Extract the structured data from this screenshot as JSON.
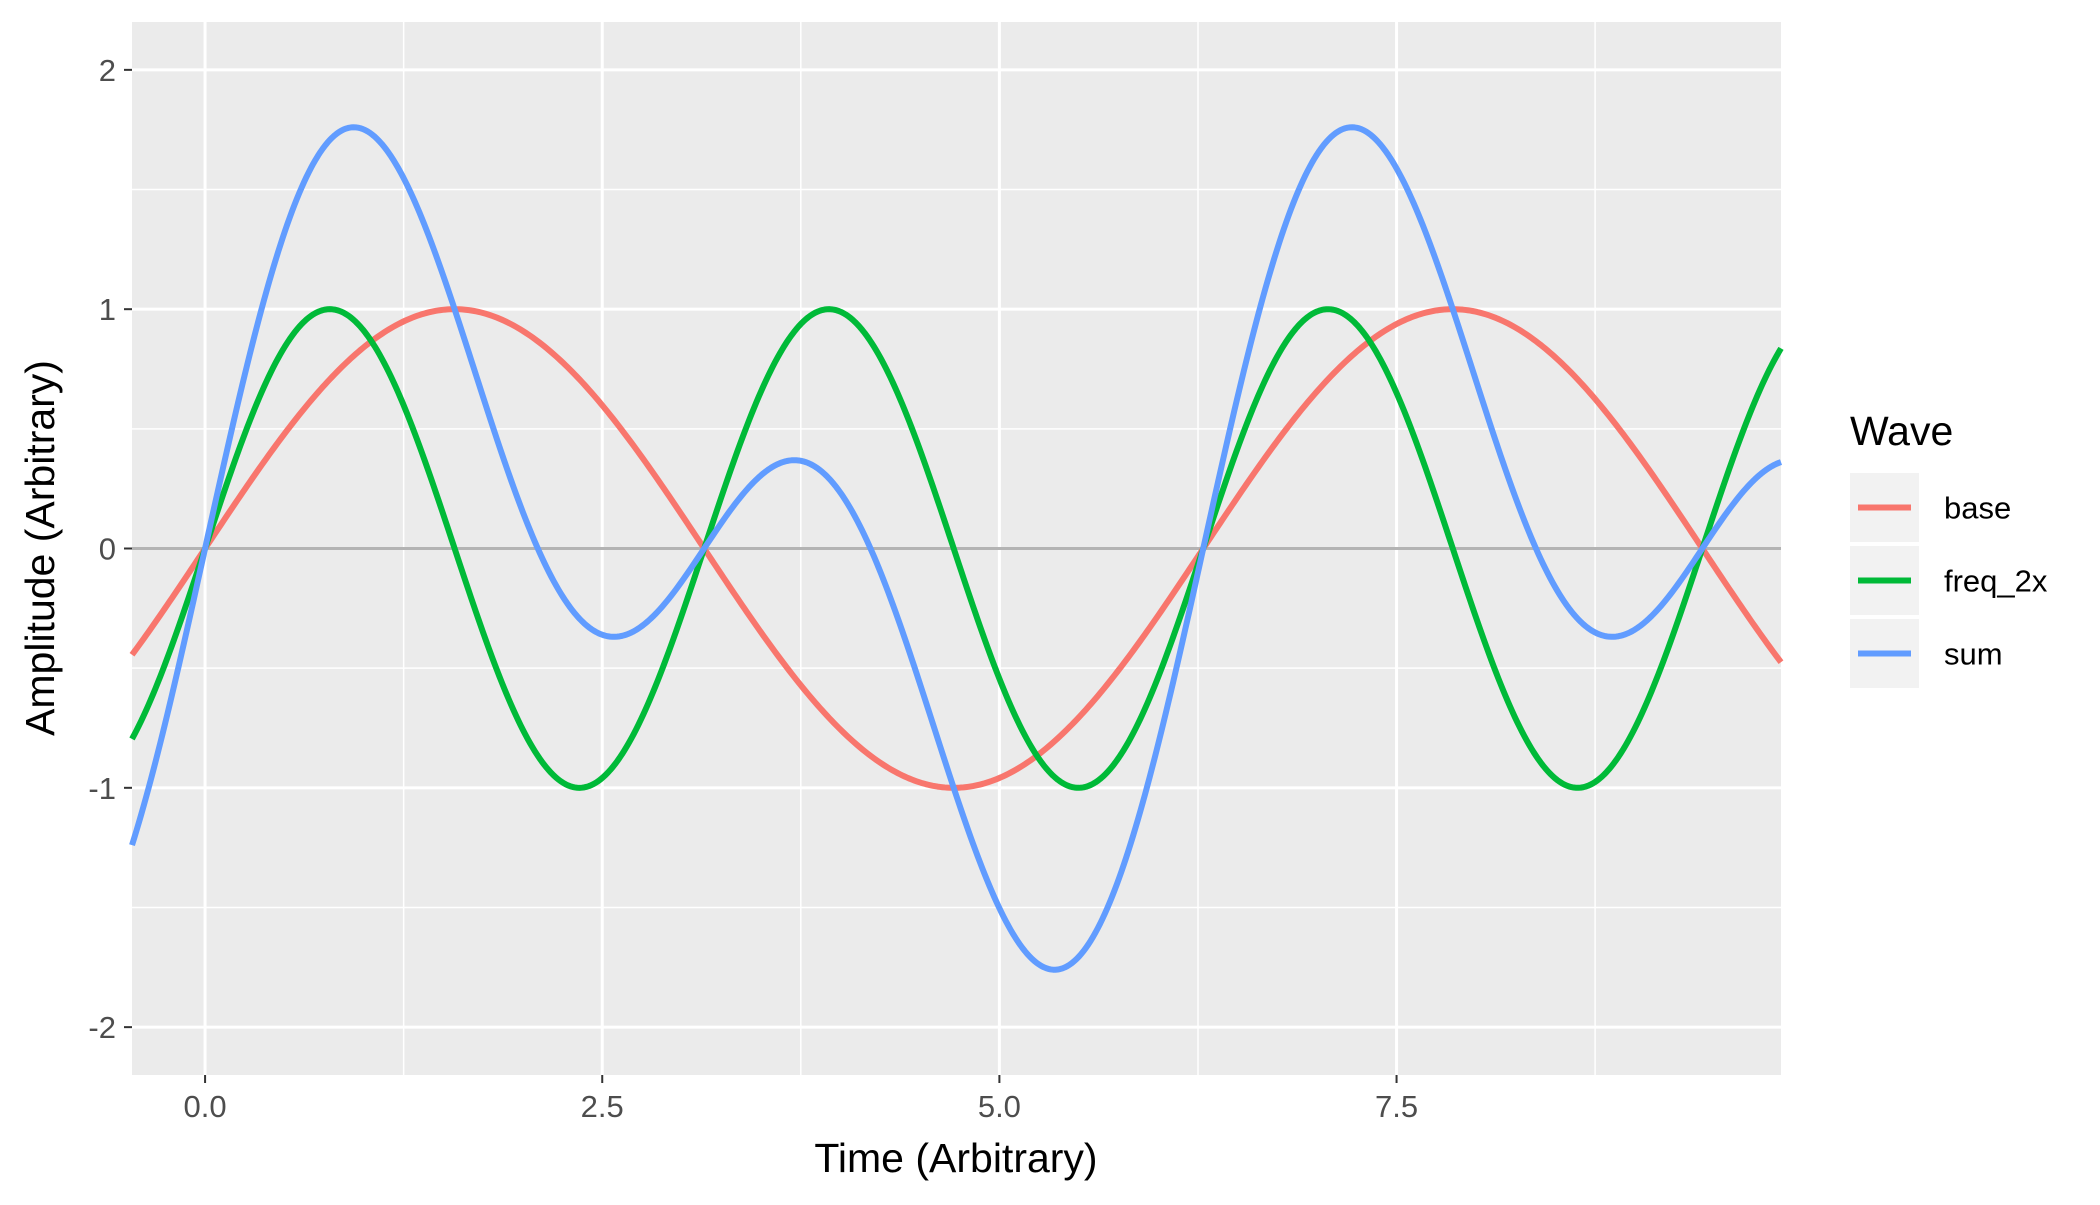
{
  "chart_data": {
    "type": "line",
    "title": "",
    "xlabel": "Time (Arbitrary)",
    "ylabel": "Amplitude (Arbitrary)",
    "xlim": [
      -0.46,
      9.92
    ],
    "ylim": [
      -2.2,
      2.2
    ],
    "x_ticks": [
      0.0,
      2.5,
      5.0,
      7.5
    ],
    "x_tick_labels": [
      "0.0",
      "2.5",
      "5.0",
      "7.5"
    ],
    "y_ticks": [
      -2,
      -1,
      0,
      1,
      2
    ],
    "y_tick_labels": [
      "-2",
      "-1",
      "0",
      "1",
      "2"
    ],
    "grid": true,
    "reference_line_y": 0,
    "legend": {
      "title": "Wave",
      "position": "right"
    },
    "series": [
      {
        "name": "base",
        "color": "#F8766D",
        "formula": "sin(x)",
        "points": [
          [
            -0.46,
            -0.44
          ],
          [
            0.0,
            0.0
          ],
          [
            0.79,
            0.71
          ],
          [
            1.57,
            1.0
          ],
          [
            2.36,
            0.71
          ],
          [
            3.14,
            0.0
          ],
          [
            3.93,
            -0.71
          ],
          [
            4.71,
            -1.0
          ],
          [
            5.5,
            -0.71
          ],
          [
            6.28,
            0.0
          ],
          [
            7.07,
            0.71
          ],
          [
            7.85,
            1.0
          ],
          [
            8.64,
            0.71
          ],
          [
            9.42,
            0.0
          ],
          [
            9.92,
            -0.47
          ]
        ]
      },
      {
        "name": "freq_2x",
        "color": "#00BA38",
        "formula": "sin(2x)",
        "points": [
          [
            -0.46,
            -0.8
          ],
          [
            0.0,
            0.0
          ],
          [
            0.79,
            1.0
          ],
          [
            1.57,
            0.0
          ],
          [
            2.36,
            -1.0
          ],
          [
            3.14,
            0.0
          ],
          [
            3.93,
            1.0
          ],
          [
            4.71,
            0.0
          ],
          [
            5.5,
            -1.0
          ],
          [
            6.28,
            0.0
          ],
          [
            7.07,
            1.0
          ],
          [
            7.85,
            0.0
          ],
          [
            8.64,
            -1.0
          ],
          [
            9.42,
            0.0
          ],
          [
            9.92,
            0.83
          ]
        ]
      },
      {
        "name": "sum",
        "color": "#619CFF",
        "formula": "sin(x) + sin(2x)",
        "points": [
          [
            -0.46,
            -1.24
          ],
          [
            0.0,
            0.0
          ],
          [
            0.94,
            1.76
          ],
          [
            2.59,
            -0.37
          ],
          [
            3.14,
            0.0
          ],
          [
            3.69,
            0.37
          ],
          [
            5.35,
            -1.76
          ],
          [
            6.28,
            0.0
          ],
          [
            7.22,
            1.76
          ],
          [
            8.87,
            -0.37
          ],
          [
            9.42,
            0.0
          ],
          [
            9.92,
            0.36
          ]
        ]
      }
    ]
  }
}
